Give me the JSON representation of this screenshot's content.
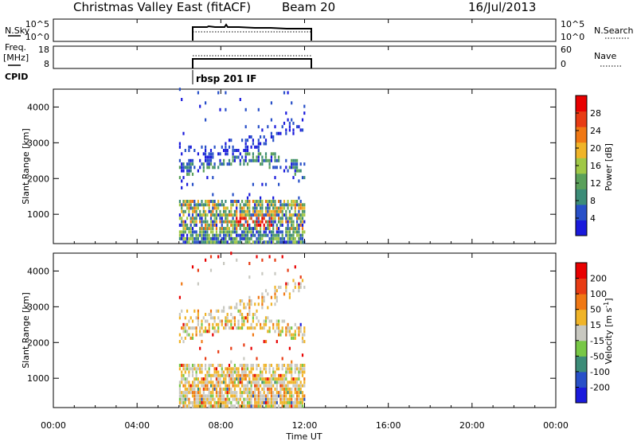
{
  "header": {
    "title": "Christmas Valley East (fitACF)",
    "beam": "Beam 20",
    "date": "16/Jul/2013"
  },
  "noise_panel": {
    "left_label": "N.Sky",
    "left_ticks": [
      "10^5",
      "10^0"
    ],
    "right_ticks": [
      "10^5",
      "10^0"
    ],
    "right_label": "N.Search"
  },
  "freq_panel": {
    "left_label_line1": "Freq.",
    "left_label_line2": "[MHz]",
    "left_ticks": [
      "18",
      "8"
    ],
    "right_ticks": [
      "60",
      "0"
    ],
    "right_label": "Nave"
  },
  "cpid": {
    "label": "CPID",
    "program": "rbsp 201 IF"
  },
  "time_axis": {
    "label": "Time UT",
    "ticks": [
      "00:00",
      "04:00",
      "08:00",
      "12:00",
      "16:00",
      "20:00",
      "00:00"
    ]
  },
  "colors": {
    "power_scale": [
      "#1a1adc",
      "#2850c8",
      "#3c8c78",
      "#5aa05a",
      "#a0c846",
      "#f0b428",
      "#f07814",
      "#e83c14",
      "#e80000"
    ],
    "velocity_scale": [
      "#1a1adc",
      "#2850c8",
      "#3c8c78",
      "#78c846",
      "#c8c8c0",
      "#f0b428",
      "#f07814",
      "#e83c14",
      "#e80000"
    ]
  },
  "chart_data": [
    {
      "type": "heatmap",
      "panel": "power",
      "ylabel": "Slant Range [km]",
      "yticks": [
        "1000",
        "2000",
        "3000",
        "4000"
      ],
      "ylim": [
        180,
        4500
      ],
      "xlim_hours": [
        0,
        24
      ],
      "data_extent_hours": [
        6,
        12
      ],
      "colorbar_label": "Power [dB]",
      "colorbar_ticks": [
        "4",
        "8",
        "12",
        "16",
        "20",
        "24",
        "28"
      ],
      "colorbar_range": [
        0,
        30
      ]
    },
    {
      "type": "heatmap",
      "panel": "velocity",
      "ylabel": "Slant Range [km]",
      "yticks": [
        "1000",
        "2000",
        "3000",
        "4000"
      ],
      "ylim": [
        180,
        4500
      ],
      "xlim_hours": [
        0,
        24
      ],
      "data_extent_hours": [
        6,
        12
      ],
      "colorbar_label": "Velocity [m s^-1]",
      "colorbar_ticks": [
        "200",
        "100",
        "50",
        "15",
        "-15",
        "-50",
        "-100",
        "-200"
      ],
      "colorbar_range": [
        -250,
        250
      ]
    }
  ]
}
